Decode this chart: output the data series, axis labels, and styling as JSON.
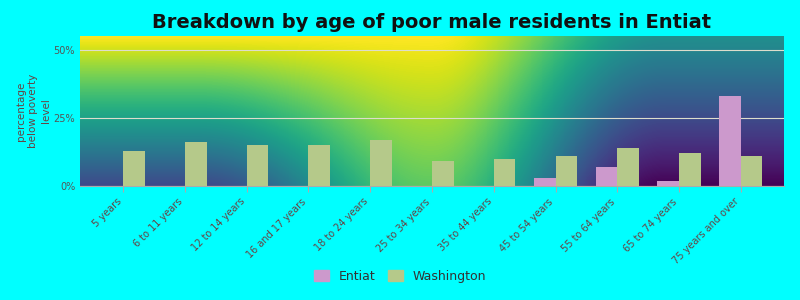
{
  "title": "Breakdown by age of poor male residents in Entiat",
  "ylabel": "percentage\nbelow poverty\nlevel",
  "categories": [
    "5 years",
    "6 to 11 years",
    "12 to 14 years",
    "16 and 17 years",
    "18 to 24 years",
    "25 to 34 years",
    "35 to 44 years",
    "45 to 54 years",
    "55 to 64 years",
    "65 to 74 years",
    "75 years and over"
  ],
  "entiat_values": [
    0,
    0,
    0,
    0,
    0,
    0,
    0,
    3,
    7,
    2,
    33
  ],
  "washington_values": [
    13,
    16,
    15,
    15,
    17,
    9,
    10,
    11,
    14,
    12,
    11
  ],
  "entiat_color": "#cc99cc",
  "washington_color": "#b5c98a",
  "plot_bg_top": "#f8f8e8",
  "plot_bg_bottom": "#dff0d8",
  "ylim": [
    0,
    55
  ],
  "yticks": [
    0,
    25,
    50
  ],
  "ytick_labels": [
    "0%",
    "25%",
    "50%"
  ],
  "bar_width": 0.35,
  "figure_bg": "#00ffff",
  "legend_entiat": "Entiat",
  "legend_washington": "Washington",
  "title_fontsize": 14,
  "axis_label_fontsize": 7.5,
  "tick_fontsize": 7,
  "grid_color": "#ddddcc",
  "spine_color": "#aaaaaa",
  "tick_label_color": "#664444",
  "ytick_label_color": "#555555"
}
